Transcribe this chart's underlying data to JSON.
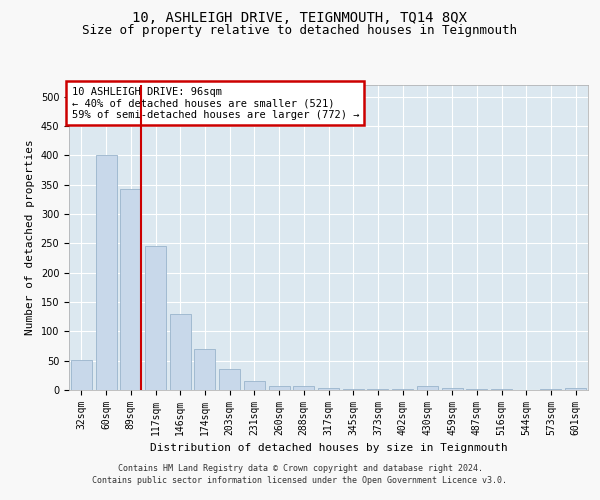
{
  "title": "10, ASHLEIGH DRIVE, TEIGNMOUTH, TQ14 8QX",
  "subtitle": "Size of property relative to detached houses in Teignmouth",
  "xlabel": "Distribution of detached houses by size in Teignmouth",
  "ylabel": "Number of detached properties",
  "categories": [
    "32sqm",
    "60sqm",
    "89sqm",
    "117sqm",
    "146sqm",
    "174sqm",
    "203sqm",
    "231sqm",
    "260sqm",
    "288sqm",
    "317sqm",
    "345sqm",
    "373sqm",
    "402sqm",
    "430sqm",
    "459sqm",
    "487sqm",
    "516sqm",
    "544sqm",
    "573sqm",
    "601sqm"
  ],
  "values": [
    51,
    401,
    343,
    246,
    130,
    70,
    36,
    16,
    7,
    7,
    4,
    2,
    1,
    1,
    6,
    4,
    1,
    1,
    0,
    1,
    4
  ],
  "bar_color": "#c8d8ea",
  "bar_edge_color": "#9ab4cc",
  "red_line_index": 2,
  "annotation_text": "10 ASHLEIGH DRIVE: 96sqm\n← 40% of detached houses are smaller (521)\n59% of semi-detached houses are larger (772) →",
  "annotation_box_color": "#ffffff",
  "annotation_box_edge": "#cc0000",
  "ylim": [
    0,
    520
  ],
  "yticks": [
    0,
    50,
    100,
    150,
    200,
    250,
    300,
    350,
    400,
    450,
    500
  ],
  "fig_background": "#f8f8f8",
  "plot_background": "#dce8f0",
  "footer_line1": "Contains HM Land Registry data © Crown copyright and database right 2024.",
  "footer_line2": "Contains public sector information licensed under the Open Government Licence v3.0.",
  "title_fontsize": 10,
  "subtitle_fontsize": 9,
  "axis_label_fontsize": 8,
  "tick_fontsize": 7,
  "annot_fontsize": 7.5,
  "footer_fontsize": 6
}
